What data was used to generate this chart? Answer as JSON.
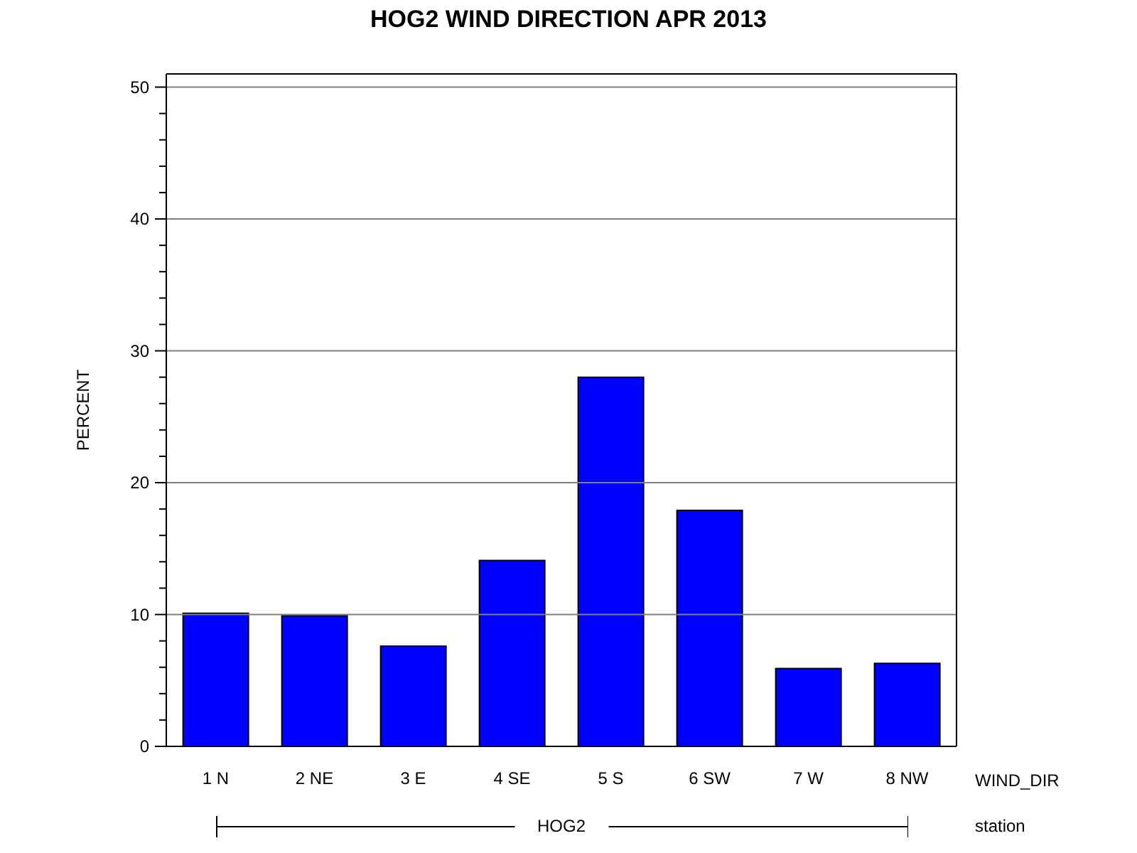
{
  "chart_data": {
    "type": "bar",
    "title": "HOG2 WIND DIRECTION APR 2013",
    "xlabel": "WIND_DIR",
    "ylabel": "PERCENT",
    "annotations": [
      "HOG2",
      "station"
    ],
    "categories": [
      "1 N",
      "2 NE",
      "3 E",
      "4 SE",
      "5 S",
      "6 SW",
      "7 W",
      "8 NW"
    ],
    "values": [
      10.1,
      9.9,
      7.6,
      14.1,
      28.0,
      17.9,
      5.9,
      6.3
    ],
    "color": "#0000ff",
    "ylim": [
      0,
      51
    ],
    "yticks": [
      0,
      {
        "value": 2,
        "label": null
      },
      {
        "value": 4,
        "label": null
      },
      {
        "value": 6,
        "label": null
      },
      {
        "value": 8,
        "label": null
      },
      10,
      {
        "value": 12,
        "label": null
      },
      {
        "value": 14,
        "label": null
      },
      {
        "value": 16,
        "label": null
      },
      {
        "value": 18,
        "label": null
      },
      20,
      {
        "value": 22,
        "label": null
      },
      {
        "value": 24,
        "label": null
      },
      {
        "value": 26,
        "label": null
      },
      {
        "value": 28,
        "label": null
      },
      30,
      {
        "value": 32,
        "label": null
      },
      {
        "value": 34,
        "label": null
      },
      {
        "value": 36,
        "label": null
      },
      {
        "value": 38,
        "label": null
      },
      40,
      {
        "value": 42,
        "label": null
      },
      {
        "value": 44,
        "label": null
      },
      {
        "value": 46,
        "label": null
      },
      {
        "value": 48,
        "label": null
      },
      50
    ],
    "grid": "y"
  }
}
